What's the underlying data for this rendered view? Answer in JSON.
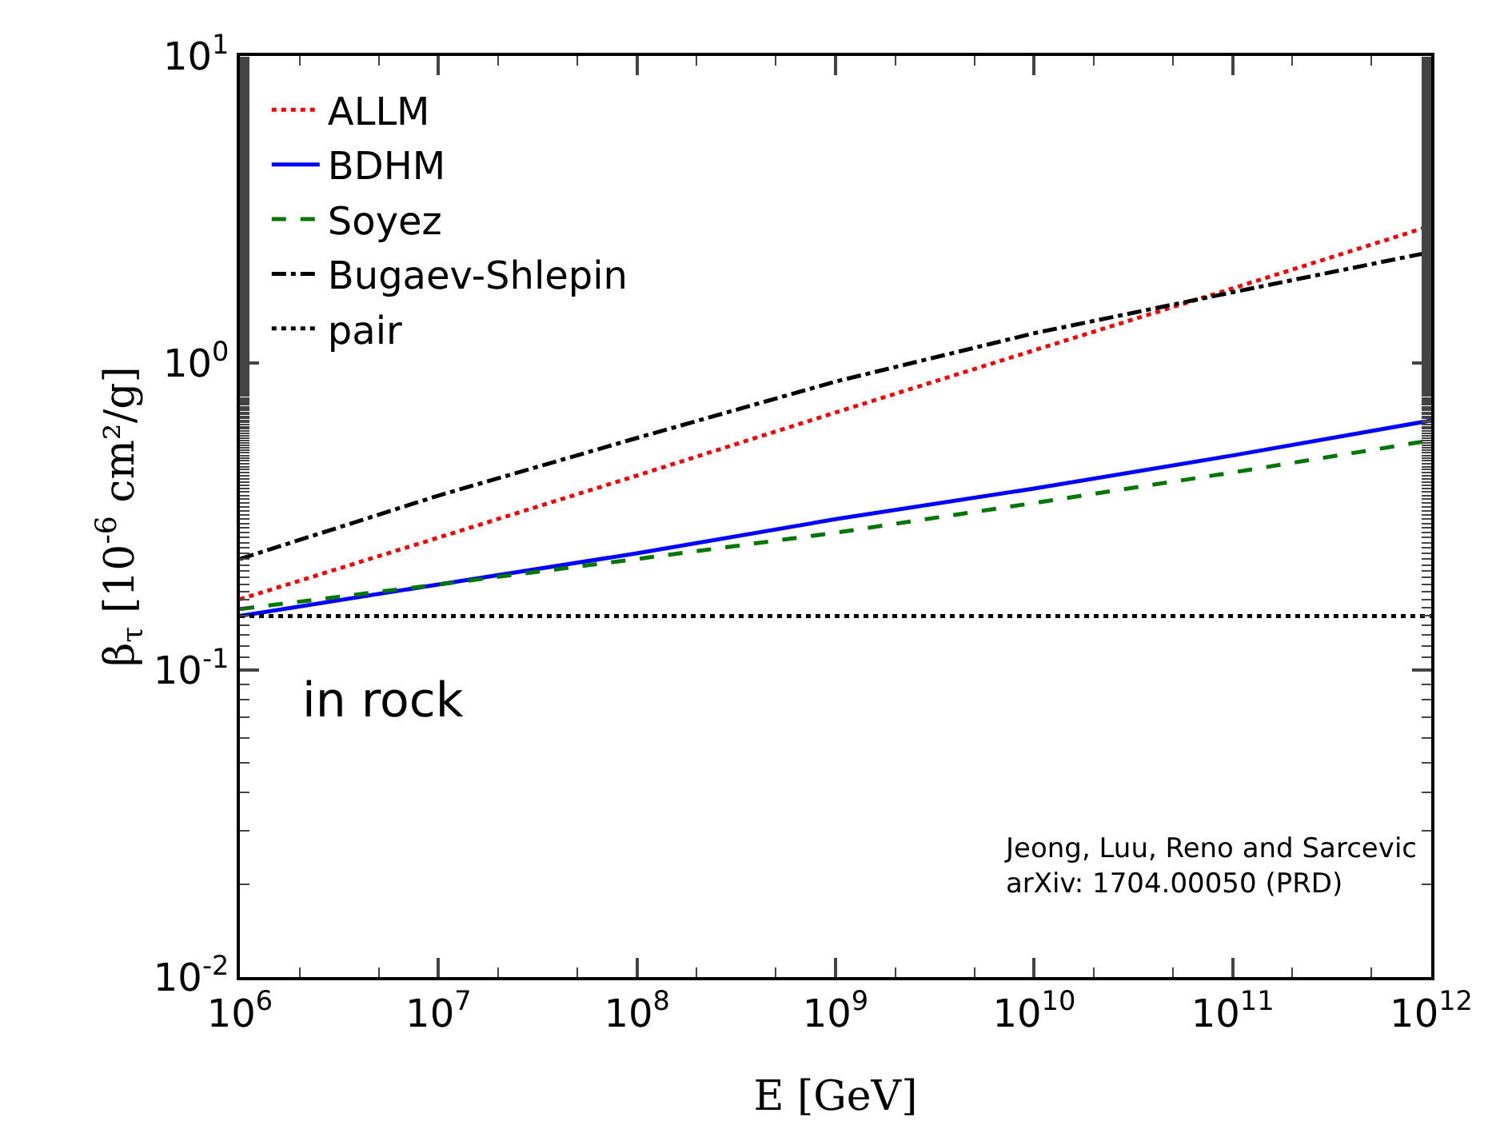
{
  "chart_data": {
    "type": "line",
    "xlabel": "E [GeV]",
    "ylabel": "β$_{τ}$ [10$^{-6}$ cm²/g]",
    "x": [
      1000000,
      10000000,
      100000000,
      1000000000,
      10000000000,
      100000000000,
      1000000000000
    ],
    "series": [
      {
        "name": "ALLM",
        "color": "#ff0000",
        "line_style": "dotted",
        "values": [
          0.17,
          0.27,
          0.43,
          0.69,
          1.1,
          1.75,
          2.8
        ]
      },
      {
        "name": "BDHM",
        "color": "#0000ff",
        "line_style": "solid",
        "values": [
          0.15,
          0.19,
          0.24,
          0.31,
          0.39,
          0.5,
          0.65
        ]
      },
      {
        "name": "Soyez",
        "color": "#007700",
        "line_style": "dashed",
        "values": [
          0.158,
          0.19,
          0.23,
          0.28,
          0.35,
          0.44,
          0.56
        ]
      },
      {
        "name": "Bugaev-Shlepin",
        "color": "#000000",
        "line_style": "dashdot",
        "values": [
          0.23,
          0.37,
          0.57,
          0.87,
          1.25,
          1.7,
          2.3
        ]
      },
      {
        "name": "pair",
        "color": "#000000",
        "line_style": "dotted",
        "values": [
          0.15,
          0.15,
          0.15,
          0.15,
          0.15,
          0.15,
          0.15
        ]
      }
    ],
    "log": "xy",
    "xlim": [
      1000000,
      1000000000000
    ],
    "ylim": [
      0.01,
      10
    ],
    "xticks": [
      {
        "value": 1000000,
        "label": "10$^{6}$"
      },
      {
        "value": 10000000,
        "label": "10$^{7}$"
      },
      {
        "value": 100000000,
        "label": "10$^{8}$"
      },
      {
        "value": 1000000000,
        "label": "10$^{9}$"
      },
      {
        "value": 10000000000,
        "label": "10$^{10}$"
      },
      {
        "value": 100000000000,
        "label": "10$^{11}$"
      },
      {
        "value": 1000000000000,
        "label": "10$^{12}$"
      }
    ],
    "yticks": [
      {
        "value": 0.01,
        "label": "10$^{-2}$"
      },
      {
        "value": 0.1,
        "label": "10$^{-1}$"
      },
      {
        "value": 1,
        "label": "10$^{0}$"
      },
      {
        "value": 10,
        "label": "10$^{1}$"
      }
    ],
    "legend": "top left",
    "grid": false,
    "annotations": [
      "in rock",
      "Jeong, Luu, Reno and Sarcevic\narXiv: 1704.00050 (PRD)"
    ]
  }
}
